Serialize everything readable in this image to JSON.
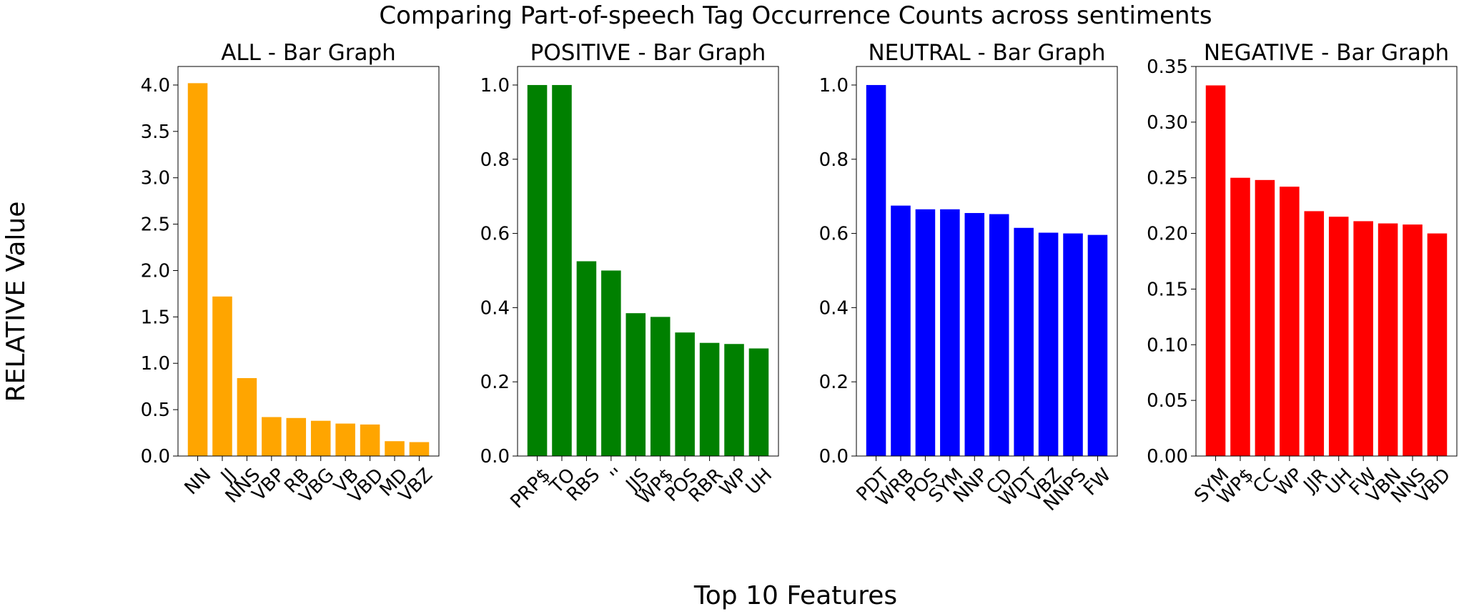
{
  "figure": {
    "suptitle": "Comparing Part-of-speech Tag Occurrence Counts across sentiments",
    "xlabel": "Top 10 Features",
    "ylabel": "RELATIVE Value"
  },
  "chart_data": [
    {
      "type": "bar",
      "title": "ALL - Bar Graph",
      "color": "#ffa500",
      "categories": [
        "NN",
        "JJ",
        "NNS",
        "VBP",
        "RB",
        "VBG",
        "VB",
        "VBD",
        "MD",
        "VBZ"
      ],
      "values": [
        4.02,
        1.72,
        0.84,
        0.42,
        0.41,
        0.38,
        0.35,
        0.34,
        0.16,
        0.15
      ],
      "ylim": [
        0,
        4.2
      ],
      "yticks": [
        0,
        0.5,
        1.0,
        1.5,
        2.0,
        2.5,
        3.0,
        3.5,
        4.0
      ],
      "ytick_labels": [
        "0.0",
        "0.5",
        "1.0",
        "1.5",
        "2.0",
        "2.5",
        "3.0",
        "3.5",
        "4.0"
      ]
    },
    {
      "type": "bar",
      "title": "POSITIVE - Bar Graph",
      "color": "#008000",
      "categories": [
        "PRP$",
        "TO",
        "RBS",
        "''",
        "JJS",
        "WP$",
        "POS",
        "RBR",
        "WP",
        "UH"
      ],
      "values": [
        1.0,
        1.0,
        0.525,
        0.5,
        0.385,
        0.375,
        0.333,
        0.305,
        0.302,
        0.29
      ],
      "ylim": [
        0,
        1.05
      ],
      "yticks": [
        0,
        0.2,
        0.4,
        0.6,
        0.8,
        1.0
      ],
      "ytick_labels": [
        "0.0",
        "0.2",
        "0.4",
        "0.6",
        "0.8",
        "1.0"
      ]
    },
    {
      "type": "bar",
      "title": "NEUTRAL - Bar Graph",
      "color": "#0000ff",
      "categories": [
        "PDT",
        "WRB",
        "POS",
        "SYM",
        "NNP",
        "CD",
        "WDT",
        "VBZ",
        "NNPS",
        "FW"
      ],
      "values": [
        1.0,
        0.675,
        0.665,
        0.665,
        0.655,
        0.652,
        0.615,
        0.602,
        0.6,
        0.596
      ],
      "ylim": [
        0,
        1.05
      ],
      "yticks": [
        0,
        0.2,
        0.4,
        0.6,
        0.8,
        1.0
      ],
      "ytick_labels": [
        "0.0",
        "0.2",
        "0.4",
        "0.6",
        "0.8",
        "1.0"
      ]
    },
    {
      "type": "bar",
      "title": "NEGATIVE - Bar Graph",
      "color": "#ff0000",
      "categories": [
        "SYM",
        "WP$",
        "CC",
        "WP",
        "JJR",
        "UH",
        "FW",
        "VBN",
        "NNS",
        "VBD"
      ],
      "values": [
        0.333,
        0.25,
        0.248,
        0.242,
        0.22,
        0.215,
        0.211,
        0.209,
        0.208,
        0.2
      ],
      "ylim": [
        0,
        0.35
      ],
      "yticks": [
        0,
        0.05,
        0.1,
        0.15,
        0.2,
        0.25,
        0.3,
        0.35
      ],
      "ytick_labels": [
        "0.00",
        "0.05",
        "0.10",
        "0.15",
        "0.20",
        "0.25",
        "0.30",
        "0.35"
      ]
    }
  ]
}
